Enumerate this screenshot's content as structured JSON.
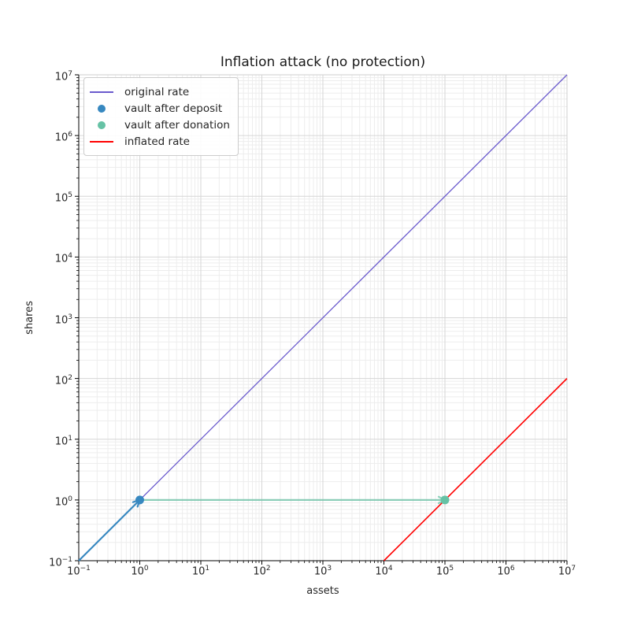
{
  "chart_data": {
    "type": "line",
    "title": "Inflation attack (no protection)",
    "xlabel": "assets",
    "ylabel": "shares",
    "xscale": "log",
    "yscale": "log",
    "xlim": [
      0.1,
      10000000
    ],
    "ylim": [
      0.1,
      10000000
    ],
    "x_tick_exponents": [
      -1,
      0,
      1,
      2,
      3,
      4,
      5,
      6,
      7
    ],
    "y_tick_exponents": [
      -1,
      0,
      1,
      2,
      3,
      4,
      5,
      6,
      7
    ],
    "grid": "both",
    "legend_position": "upper left",
    "colors": {
      "grid_major": "#d6d6d6",
      "grid_minor": "#ededed",
      "spine_dark": "#000000",
      "spine_light": "#cfcfcf",
      "original_rate": "#6a5acd",
      "inflated_rate": "#ff0000",
      "deposit_blue": "#3788c0",
      "donation_green": "#66c2a5"
    },
    "series": [
      {
        "name": "original rate",
        "kind": "line",
        "color": "#6a5acd",
        "width": 1.3,
        "opacity": 1,
        "points": [
          [
            0.1,
            0.1
          ],
          [
            10000000,
            10000000
          ]
        ]
      },
      {
        "name": "inflated rate",
        "kind": "line",
        "color": "#ff0000",
        "width": 1.6,
        "opacity": 1,
        "points": [
          [
            10000,
            0.1
          ],
          [
            10000000,
            100
          ]
        ]
      },
      {
        "name": "deposit arrow",
        "kind": "arrow",
        "color": "#3788c0",
        "width": 2.2,
        "opacity": 1,
        "from": [
          0.1,
          0.1
        ],
        "to": [
          1,
          1
        ]
      },
      {
        "name": "donation arrow",
        "kind": "arrow",
        "color": "#66c2a5",
        "width": 2.2,
        "opacity": 0.72,
        "from": [
          1,
          1
        ],
        "to": [
          100000,
          1
        ]
      },
      {
        "name": "vault after deposit",
        "kind": "scatter",
        "color": "#3788c0",
        "radius": 5.5,
        "points": [
          [
            1,
            1
          ]
        ]
      },
      {
        "name": "vault after donation",
        "kind": "scatter",
        "color": "#66c2a5",
        "radius": 5.5,
        "points": [
          [
            100000,
            1
          ]
        ]
      }
    ],
    "legend": [
      {
        "label": "original rate",
        "marker": "line",
        "color": "#6a5acd"
      },
      {
        "label": "vault after deposit",
        "marker": "dot",
        "color": "#3788c0"
      },
      {
        "label": "vault after donation",
        "marker": "dot",
        "color": "#66c2a5"
      },
      {
        "label": "inflated rate",
        "marker": "line",
        "color": "#ff0000"
      }
    ]
  }
}
